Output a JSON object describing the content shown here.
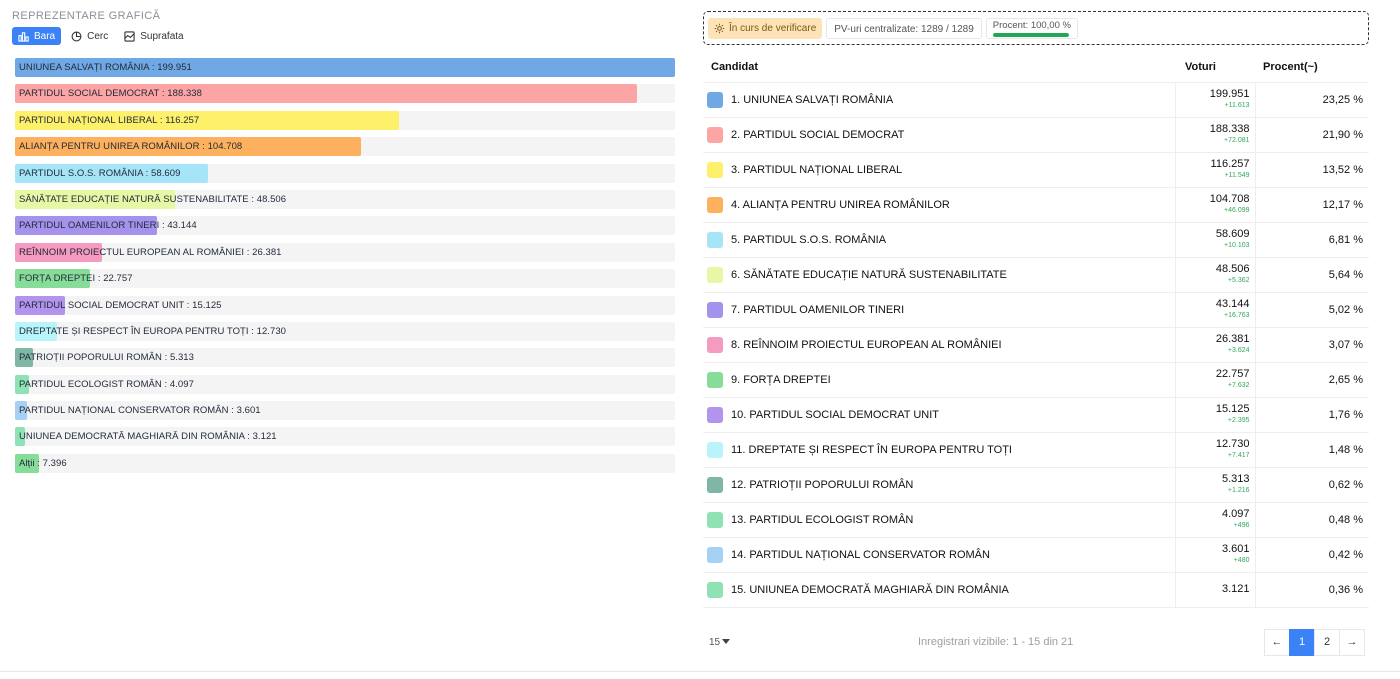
{
  "chart": {
    "section_title": "REPREZENTARE GRAFICĂ",
    "tabs": [
      {
        "label": "Bara",
        "icon": "bar-chart-icon",
        "active": true
      },
      {
        "label": "Cerc",
        "icon": "pie-chart-icon",
        "active": false
      },
      {
        "label": "Suprafata",
        "icon": "area-chart-icon",
        "active": false
      }
    ]
  },
  "chart_data": {
    "type": "bar",
    "orientation": "horizontal",
    "max_value": 199951,
    "categories": [
      {
        "label": "UNIUNEA SALVAȚI ROMÂNIA : 199.951",
        "value": 199951,
        "color": "#6fa8e4"
      },
      {
        "label": "PARTIDUL SOCIAL DEMOCRAT : 188.338",
        "value": 188338,
        "color": "#fda4a4"
      },
      {
        "label": "PARTIDUL NAȚIONAL LIBERAL : 116.257",
        "value": 116257,
        "color": "#fdf06a"
      },
      {
        "label": "ALIANȚA PENTRU UNIREA ROMÂNILOR : 104.708",
        "value": 104708,
        "color": "#fdb05d"
      },
      {
        "label": "PARTIDUL S.O.S. ROMÂNIA : 58.609",
        "value": 58609,
        "color": "#a6e4f8"
      },
      {
        "label": "SĂNĂTATE EDUCAȚIE NATURĂ SUSTENABILITATE : 48.506",
        "value": 48506,
        "color": "#e6f7a6"
      },
      {
        "label": "PARTIDUL OAMENILOR TINERI : 43.144",
        "value": 43144,
        "color": "#a592ec"
      },
      {
        "label": "REÎNNOIM PROIECTUL EUROPEAN AL ROMÂNIEI : 26.381",
        "value": 26381,
        "color": "#f59ac0"
      },
      {
        "label": "FORȚA DREPTEI : 22.757",
        "value": 22757,
        "color": "#86dc98"
      },
      {
        "label": "PARTIDUL SOCIAL DEMOCRAT UNIT : 15.125",
        "value": 15125,
        "color": "#b394ec"
      },
      {
        "label": "DREPTATE ȘI RESPECT ÎN EUROPA PENTRU TOȚI : 12.730",
        "value": 12730,
        "color": "#b8f4fa"
      },
      {
        "label": "PATRIOȚII POPORULUI ROMÂN : 5.313",
        "value": 5313,
        "color": "#7fb6a6"
      },
      {
        "label": "PARTIDUL ECOLOGIST ROMÂN : 4.097",
        "value": 4097,
        "color": "#8ee2b4"
      },
      {
        "label": "PARTIDUL NAȚIONAL CONSERVATOR ROMÂN : 3.601",
        "value": 3601,
        "color": "#a6d0f4"
      },
      {
        "label": "UNIUNEA DEMOCRATĂ MAGHIARĂ DIN ROMÂNIA : 3.121",
        "value": 3121,
        "color": "#8ee2b4"
      },
      {
        "label": "Alții : 7.396",
        "value": 7396,
        "color": "#86dc98"
      }
    ]
  },
  "status": {
    "verify_label": "În curs de verificare",
    "pv_label": "PV-uri centralizate: 1289 / 1289",
    "percent_label": "Procent: 100,00 %",
    "percent_value": 100
  },
  "table": {
    "headers": {
      "candidate": "Candidat",
      "votes": "Voturi",
      "percent": "Procent(~)"
    },
    "rows": [
      {
        "name": "1. UNIUNEA SALVAȚI ROMÂNIA",
        "votes": "199.951",
        "delta": "+11.613",
        "pct": "23,25 %",
        "color": "#6fa8e4"
      },
      {
        "name": "2. PARTIDUL SOCIAL DEMOCRAT",
        "votes": "188.338",
        "delta": "+72.081",
        "pct": "21,90 %",
        "color": "#fda4a4"
      },
      {
        "name": "3. PARTIDUL NAȚIONAL LIBERAL",
        "votes": "116.257",
        "delta": "+11.549",
        "pct": "13,52 %",
        "color": "#fdf06a"
      },
      {
        "name": "4. ALIANȚA PENTRU UNIREA ROMÂNILOR",
        "votes": "104.708",
        "delta": "+46.099",
        "pct": "12,17 %",
        "color": "#fdb05d"
      },
      {
        "name": "5. PARTIDUL S.O.S. ROMÂNIA",
        "votes": "58.609",
        "delta": "+10.103",
        "pct": "6,81 %",
        "color": "#a6e4f8"
      },
      {
        "name": "6. SĂNĂTATE EDUCAȚIE NATURĂ SUSTENABILITATE",
        "votes": "48.506",
        "delta": "+5.362",
        "pct": "5,64 %",
        "color": "#e6f7a6"
      },
      {
        "name": "7. PARTIDUL OAMENILOR TINERI",
        "votes": "43.144",
        "delta": "+16.763",
        "pct": "5,02 %",
        "color": "#a592ec"
      },
      {
        "name": "8. REÎNNOIM PROIECTUL EUROPEAN AL ROMÂNIEI",
        "votes": "26.381",
        "delta": "+3.624",
        "pct": "3,07 %",
        "color": "#f59ac0"
      },
      {
        "name": "9. FORȚA DREPTEI",
        "votes": "22.757",
        "delta": "+7.632",
        "pct": "2,65 %",
        "color": "#86dc98"
      },
      {
        "name": "10. PARTIDUL SOCIAL DEMOCRAT UNIT",
        "votes": "15.125",
        "delta": "+2.395",
        "pct": "1,76 %",
        "color": "#b394ec"
      },
      {
        "name": "11. DREPTATE ȘI RESPECT ÎN EUROPA PENTRU TOȚI",
        "votes": "12.730",
        "delta": "+7.417",
        "pct": "1,48 %",
        "color": "#b8f4fa"
      },
      {
        "name": "12. PATRIOȚII POPORULUI ROMÂN",
        "votes": "5.313",
        "delta": "+1.216",
        "pct": "0,62 %",
        "color": "#7fb6a6"
      },
      {
        "name": "13. PARTIDUL ECOLOGIST ROMÂN",
        "votes": "4.097",
        "delta": "+496",
        "pct": "0,48 %",
        "color": "#8ee2b4"
      },
      {
        "name": "14. PARTIDUL NAȚIONAL CONSERVATOR ROMÂN",
        "votes": "3.601",
        "delta": "+480",
        "pct": "0,42 %",
        "color": "#a6d0f4"
      },
      {
        "name": "15. UNIUNEA DEMOCRATĂ MAGHIARĂ DIN ROMÂNIA",
        "votes": "3.121",
        "delta": "",
        "pct": "0,36 %",
        "color": "#8ee2b4"
      }
    ]
  },
  "footer": {
    "per_page": "15",
    "visible_info": "Inregistrari vizibile: 1 - 15 din 21",
    "prev": "←",
    "pages": [
      "1",
      "2"
    ],
    "active_page": "1",
    "next": "→"
  }
}
